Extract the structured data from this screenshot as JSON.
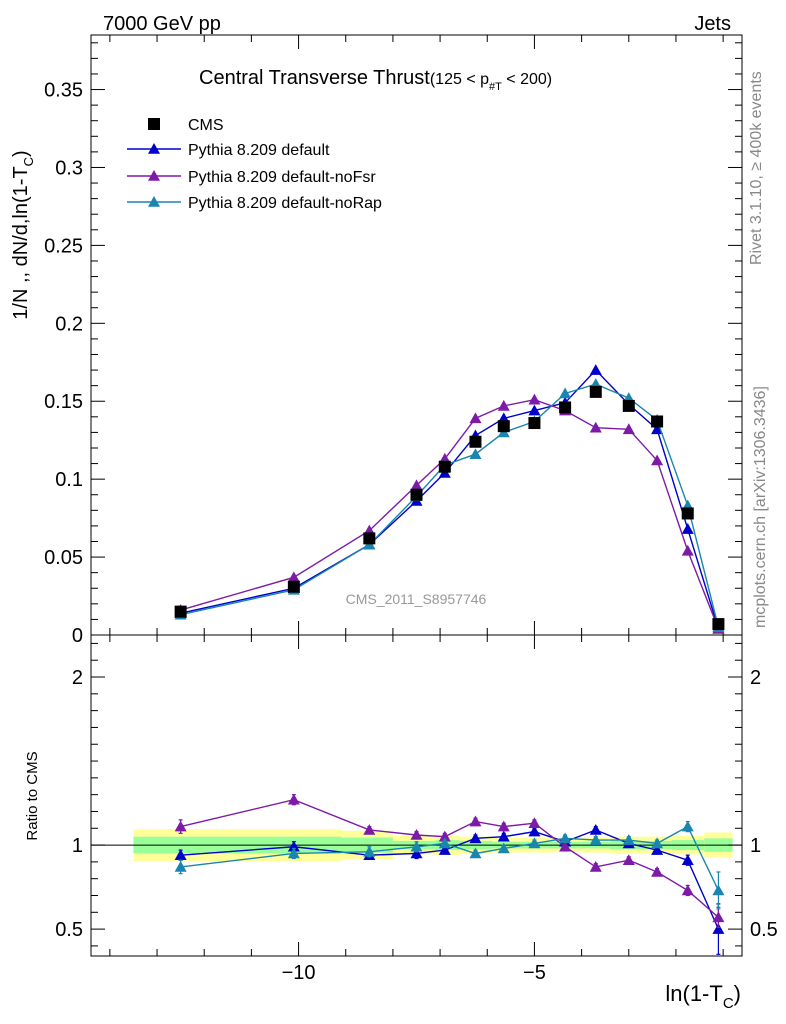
{
  "header": {
    "left": "7000 GeV pp",
    "right": "Jets"
  },
  "side_labels": {
    "rivet": "Rivet 3.1.10, ≥ 400k events",
    "mcplots": "mcplots.cern.ch [arXiv:1306.3436]"
  },
  "watermark": "CMS_2011_S8957746",
  "title": {
    "main": "Central Transverse Thrust",
    "range_open": "(125 < p",
    "range_sub": "#T",
    "range_close": " < 200)"
  },
  "colors": {
    "cms": "#000000",
    "default": "#0000cc",
    "noFsr": "#7d1aa8",
    "noRap": "#1a86ad",
    "band_yellow": "#ffff99",
    "band_green": "#99ff99"
  },
  "chart_data": {
    "type": "line",
    "x": [
      -12.5,
      -10.1,
      -8.5,
      -7.5,
      -6.9,
      -6.25,
      -5.65,
      -5.0,
      -4.35,
      -3.7,
      -3.0,
      -2.4,
      -1.75,
      -1.1
    ],
    "main": {
      "ylabel": "1/N ,, dN/d,ln(1-T",
      "ylabel_sub": "C",
      "ylabel_close": ")",
      "ylim": [
        0,
        0.385
      ],
      "yticks": [
        0,
        0.05,
        0.1,
        0.15,
        0.2,
        0.25,
        0.3,
        0.35
      ],
      "ytick_labels": [
        "0",
        "0.05",
        "0.1",
        "0.15",
        "0.2",
        "0.25",
        "0.3",
        "0.35"
      ]
    },
    "ratio": {
      "ylabel": "Ratio to CMS",
      "ylim": [
        0.34,
        2.25
      ],
      "yticks": [
        0.5,
        1,
        2
      ],
      "ytick_labels": [
        "0.5",
        "1",
        "2"
      ]
    },
    "xlim": [
      -14.4,
      -0.6
    ],
    "xticks": [
      -10,
      -5
    ],
    "xtick_labels": [
      "−10",
      "−5"
    ],
    "xlabel": "ln(1-T",
    "xlabel_sub": "C",
    "xlabel_close": ")",
    "series": [
      {
        "key": "cms",
        "name": "CMS",
        "marker": "square",
        "values": [
          0.015,
          0.031,
          0.062,
          0.09,
          0.108,
          0.124,
          0.134,
          0.136,
          0.146,
          0.156,
          0.147,
          0.137,
          0.078,
          0.007
        ],
        "ratio": [
          1,
          1,
          1,
          1,
          1,
          1,
          1,
          1,
          1,
          1,
          1,
          1,
          1,
          1
        ]
      },
      {
        "key": "default",
        "name": "Pythia 8.209 default",
        "marker": "triangle",
        "values": [
          0.014,
          0.03,
          0.058,
          0.086,
          0.104,
          0.128,
          0.139,
          0.144,
          0.149,
          0.17,
          0.148,
          0.132,
          0.068,
          0.004
        ],
        "ratio": [
          0.94,
          0.99,
          0.94,
          0.95,
          0.97,
          1.04,
          1.05,
          1.08,
          1.02,
          1.09,
          1.01,
          0.97,
          0.91,
          0.5
        ],
        "ratio_err": [
          0.03,
          0.03,
          0.02,
          0.03,
          0.02,
          0.02,
          0.02,
          0.02,
          0.02,
          0.02,
          0.02,
          0.02,
          0.03,
          0.15
        ]
      },
      {
        "key": "noFsr",
        "name": "Pythia 8.209 default-noFsr",
        "marker": "triangle",
        "values": [
          0.016,
          0.037,
          0.067,
          0.096,
          0.113,
          0.139,
          0.147,
          0.151,
          0.144,
          0.133,
          0.132,
          0.112,
          0.054,
          0.004
        ],
        "ratio": [
          1.11,
          1.27,
          1.09,
          1.06,
          1.05,
          1.14,
          1.11,
          1.13,
          0.99,
          0.87,
          0.91,
          0.84,
          0.73,
          0.57
        ],
        "ratio_err": [
          0.04,
          0.03,
          0.02,
          0.02,
          0.02,
          0.02,
          0.02,
          0.02,
          0.02,
          0.02,
          0.02,
          0.02,
          0.03,
          0.06
        ]
      },
      {
        "key": "noRap",
        "name": "Pythia 8.209 default-noRap",
        "marker": "triangle",
        "values": [
          0.013,
          0.029,
          0.058,
          0.089,
          0.109,
          0.116,
          0.13,
          0.137,
          0.155,
          0.161,
          0.152,
          0.138,
          0.083,
          0.005
        ],
        "ratio": [
          0.87,
          0.95,
          0.96,
          0.99,
          1.01,
          0.95,
          0.98,
          1.01,
          1.04,
          1.03,
          1.03,
          1.01,
          1.11,
          0.73
        ],
        "ratio_err": [
          0.04,
          0.03,
          0.03,
          0.03,
          0.02,
          0.02,
          0.02,
          0.02,
          0.02,
          0.02,
          0.02,
          0.02,
          0.03,
          0.11
        ]
      }
    ],
    "bands": {
      "edges": [
        -13.5,
        -9.1,
        -8.0,
        -7.1,
        -6.6,
        -5.9,
        -5.3,
        -4.6,
        -4.0,
        -3.4,
        -2.7,
        -2.1,
        -1.4,
        -0.8
      ],
      "yellow_halfwidth": [
        0.095,
        0.085,
        0.055,
        0.06,
        0.05,
        0.045,
        0.045,
        0.04,
        0.045,
        0.05,
        0.05,
        0.055,
        0.075
      ],
      "green_halfwidth": [
        0.05,
        0.045,
        0.025,
        0.03,
        0.025,
        0.02,
        0.02,
        0.02,
        0.02,
        0.025,
        0.025,
        0.03,
        0.04
      ]
    }
  }
}
